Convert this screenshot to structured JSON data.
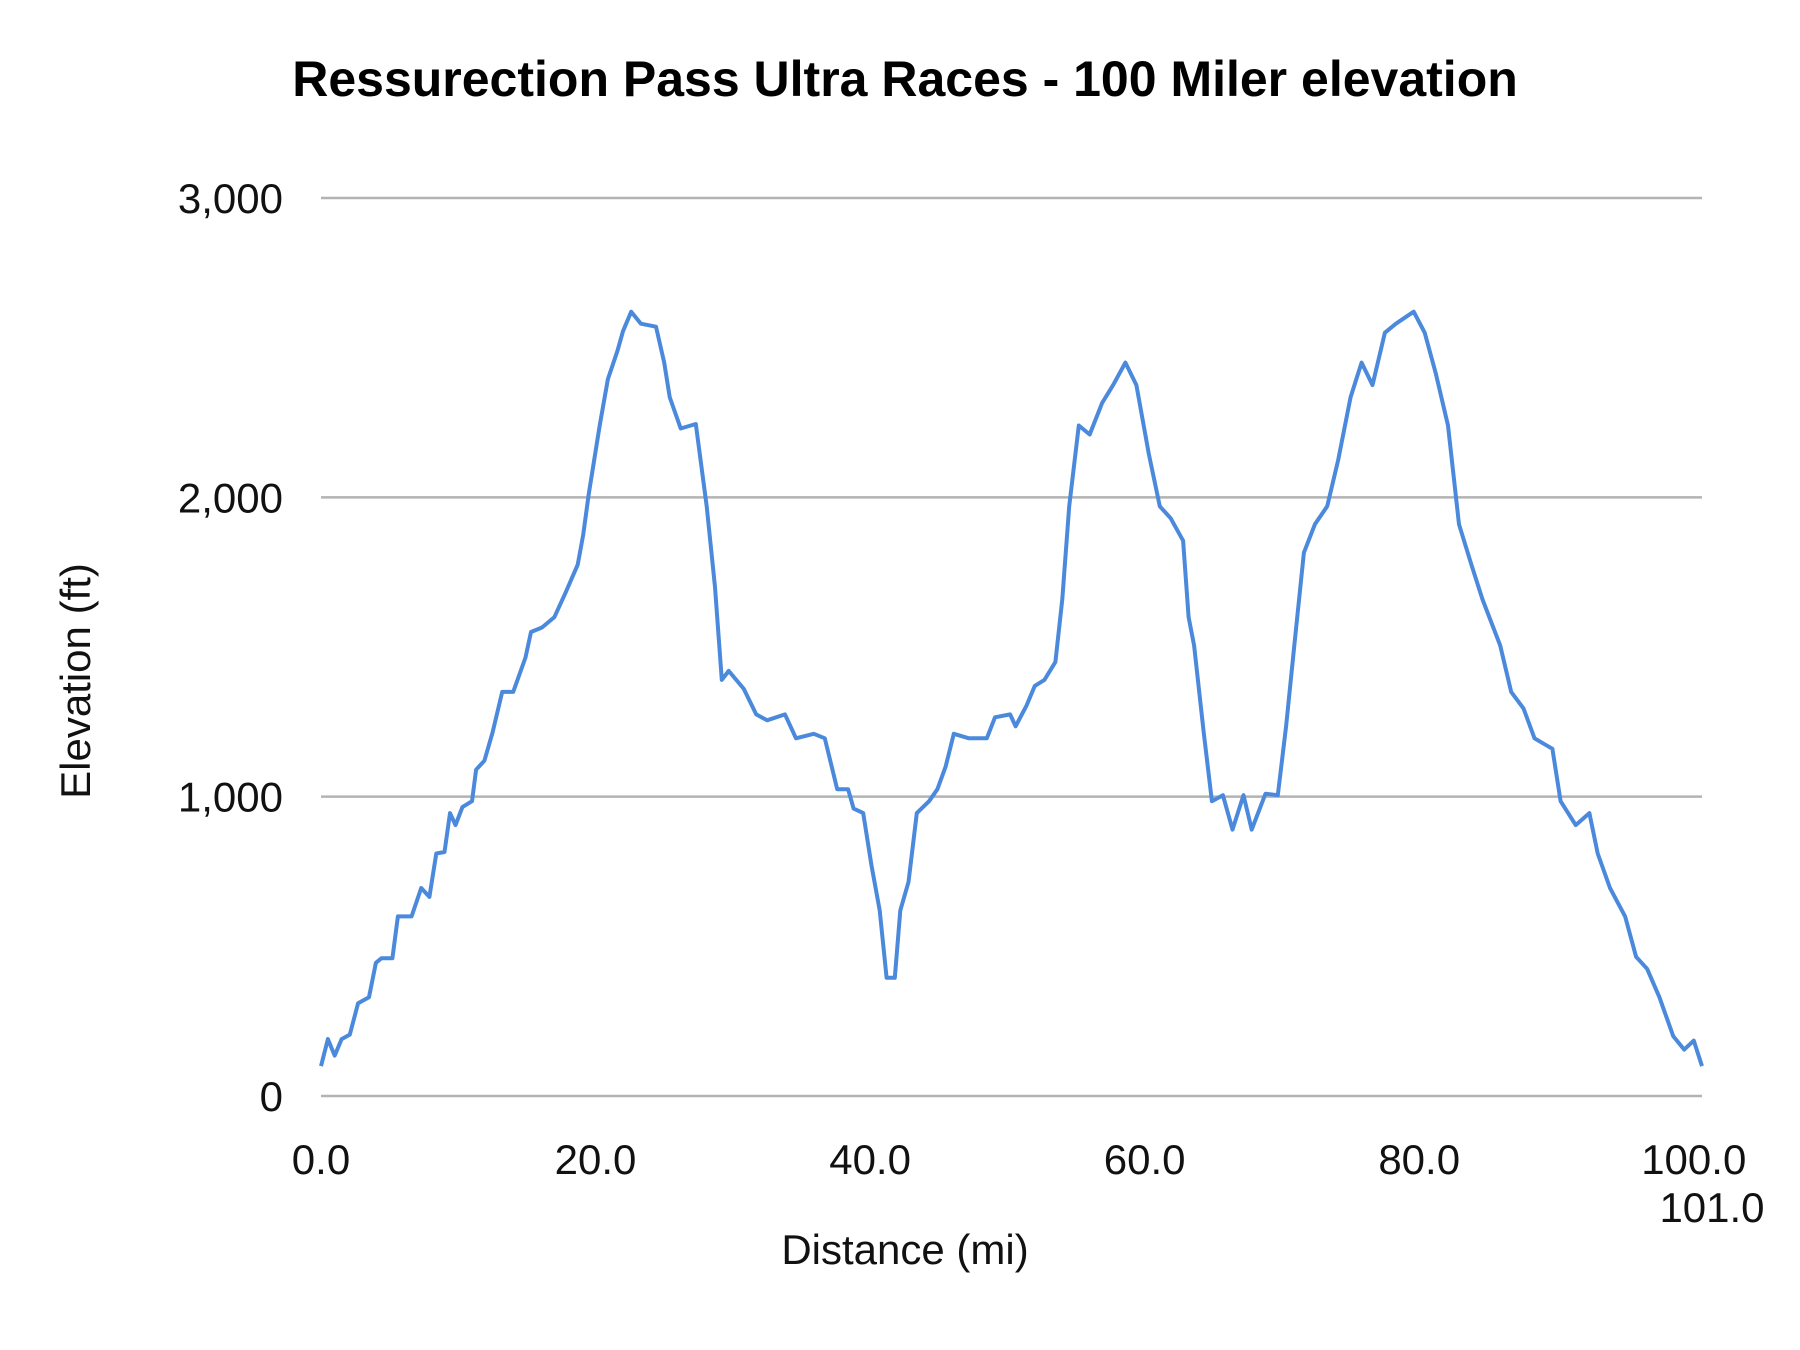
{
  "chart_data": {
    "type": "line",
    "title": "Ressurection Pass Ultra Races - 100 Miler elevation",
    "xlabel": "Distance (mi)",
    "ylabel": "Elevation (ft)",
    "xlim": [
      0,
      100.6
    ],
    "ylim": [
      0,
      3000
    ],
    "grid": true,
    "legend": "none",
    "x_ticks": [
      "0.0",
      "20.0",
      "40.0",
      "60.0",
      "80.0",
      "100.0",
      "101.0"
    ],
    "y_ticks": [
      "0",
      "1,000",
      "2,000",
      "3,000"
    ],
    "series_color": "#4a89dc",
    "series": [
      {
        "x": [
          0,
          0.5,
          1.0,
          1.5,
          2.1,
          2.7,
          3.5,
          4.0,
          4.4,
          5.2,
          5.6,
          6.6,
          7.3,
          7.9,
          8.4,
          9.0,
          9.4,
          9.8,
          10.3,
          11.0,
          11.3,
          11.9,
          12.5,
          13.2,
          14.0,
          14.9,
          15.3,
          16.1,
          17.0,
          17.8,
          18.7,
          19.1,
          19.5,
          20.3,
          20.9,
          21.6,
          22.0,
          22.6,
          23.3,
          24.4,
          25.0,
          25.4,
          26.2,
          27.3,
          28.1,
          28.7,
          29.2,
          29.7,
          30.8,
          31.7,
          32.5,
          33.8,
          34.6,
          35.9,
          36.7,
          37.6,
          38.4,
          38.8,
          39.5,
          40.1,
          40.7,
          41.2,
          41.8,
          42.2,
          42.8,
          43.4,
          44.3,
          44.9,
          45.5,
          46.1,
          47.2,
          48.5,
          49.1,
          50.2,
          50.6,
          51.4,
          52.0,
          52.7,
          53.5,
          54.0,
          54.5,
          55.2,
          56.0,
          56.9,
          57.7,
          58.6,
          59.4,
          60.3,
          61.1,
          61.9,
          62.8,
          63.2,
          63.6,
          64.3,
          64.9,
          65.7,
          66.4,
          67.2,
          67.8,
          68.8,
          69.7,
          70.3,
          70.9,
          71.6,
          72.4,
          73.3,
          74.1,
          75.0,
          75.8,
          76.6,
          77.5,
          78.3,
          79.6,
          80.4,
          81.2,
          82.1,
          82.9,
          83.8,
          84.6,
          85.9,
          86.7,
          87.6,
          88.4,
          89.7,
          90.3,
          91.4,
          92.4,
          93.0,
          93.9,
          95.0,
          95.8,
          96.6,
          97.5,
          98.5,
          99.3,
          100.0,
          100.6
        ],
        "y": [
          100,
          190,
          135,
          190,
          205,
          310,
          330,
          445,
          460,
          460,
          600,
          600,
          695,
          665,
          810,
          815,
          945,
          905,
          965,
          985,
          1090,
          1120,
          1215,
          1350,
          1350,
          1465,
          1550,
          1565,
          1600,
          1680,
          1775,
          1875,
          2010,
          2240,
          2395,
          2490,
          2555,
          2620,
          2580,
          2570,
          2450,
          2335,
          2230,
          2245,
          1970,
          1700,
          1390,
          1420,
          1360,
          1275,
          1255,
          1275,
          1195,
          1210,
          1195,
          1025,
          1025,
          960,
          945,
          770,
          620,
          395,
          395,
          620,
          715,
          945,
          985,
          1025,
          1100,
          1210,
          1195,
          1195,
          1265,
          1275,
          1235,
          1305,
          1370,
          1390,
          1450,
          1660,
          1970,
          2240,
          2210,
          2315,
          2375,
          2450,
          2375,
          2145,
          1970,
          1930,
          1855,
          1600,
          1505,
          1215,
          985,
          1005,
          890,
          1005,
          890,
          1010,
          1005,
          1235,
          1505,
          1815,
          1910,
          1970,
          2125,
          2335,
          2450,
          2375,
          2550,
          2580,
          2620,
          2550,
          2415,
          2240,
          1910,
          1775,
          1660,
          1505,
          1350,
          1295,
          1195,
          1160,
          985,
          905,
          945,
          810,
          695,
          600,
          465,
          425,
          330,
          200,
          155,
          185,
          100
        ]
      }
    ]
  }
}
